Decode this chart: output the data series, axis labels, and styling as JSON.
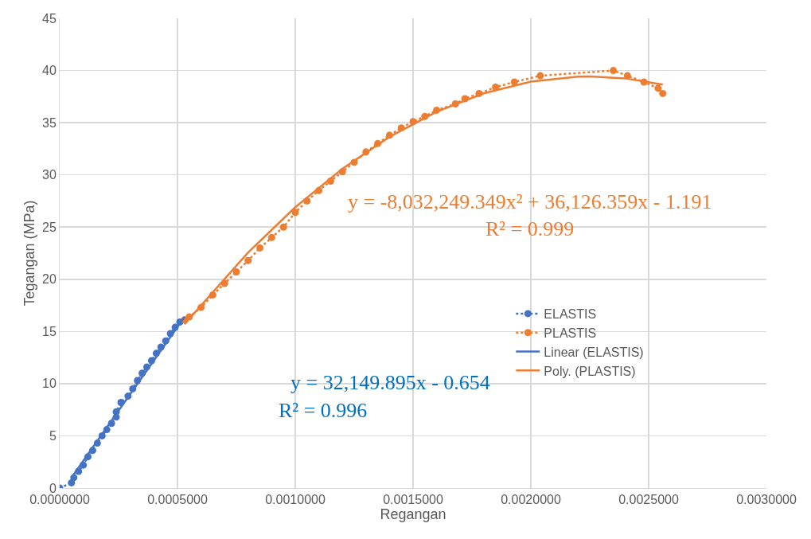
{
  "chart_data": {
    "type": "line",
    "xlabel": "Regangan",
    "ylabel": "Tegangan (MPa)",
    "xlim": [
      0,
      0.003
    ],
    "xticks": [
      {
        "value": 0,
        "label": "0.0000000"
      },
      {
        "value": 0.0005,
        "label": "0.0005000"
      },
      {
        "value": 0.001,
        "label": "0.0010000"
      },
      {
        "value": 0.0015,
        "label": "0.0015000"
      },
      {
        "value": 0.002,
        "label": "0.0020000"
      },
      {
        "value": 0.0025,
        "label": "0.0025000"
      },
      {
        "value": 0.003,
        "label": "0.0030000"
      }
    ],
    "ylim": [
      0,
      45
    ],
    "yticks": [
      0,
      5,
      10,
      15,
      20,
      25,
      30,
      35,
      40,
      45
    ],
    "grid": true,
    "legend": "right",
    "series": [
      {
        "name": "ELASTIS",
        "color": "#4472c4",
        "marker": "circle",
        "line_style": "dotted",
        "x": [
          0,
          5e-05,
          6e-05,
          8e-05,
          0.0001,
          0.00012,
          0.00014,
          0.00016,
          0.00018,
          0.0002,
          0.00022,
          0.00024,
          0.00024,
          0.00026,
          0.00029,
          0.00031,
          0.00033,
          0.00035,
          0.00037,
          0.00039,
          0.00041,
          0.00043,
          0.00045,
          0.00047,
          0.00049,
          0.00051,
          0.00053
        ],
        "values": [
          0,
          0.5,
          1.0,
          1.6,
          2.2,
          3.0,
          3.6,
          4.3,
          5.0,
          5.6,
          6.2,
          6.8,
          7.3,
          8.2,
          8.8,
          9.5,
          10.3,
          11.0,
          11.6,
          12.2,
          12.9,
          13.5,
          14.1,
          14.8,
          15.4,
          15.9,
          16.1
        ]
      },
      {
        "name": "PLASTIS",
        "color": "#ed7d31",
        "marker": "circle",
        "line_style": "dotted",
        "x": [
          0.00053,
          0.00055,
          0.0006,
          0.00065,
          0.0007,
          0.00075,
          0.0008,
          0.00085,
          0.0009,
          0.00095,
          0.001,
          0.00105,
          0.0011,
          0.00115,
          0.0012,
          0.00125,
          0.0013,
          0.00135,
          0.0014,
          0.00145,
          0.0015,
          0.00155,
          0.0016,
          0.00168,
          0.00172,
          0.00178,
          0.00185,
          0.00193,
          0.00204,
          0.00235,
          0.00241,
          0.00248,
          0.00254,
          0.00256
        ],
        "values": [
          16.1,
          16.4,
          17.3,
          18.5,
          19.6,
          20.7,
          21.8,
          23.0,
          24.0,
          25.0,
          26.4,
          27.5,
          28.5,
          29.4,
          30.3,
          31.2,
          32.2,
          33.0,
          33.8,
          34.5,
          35.1,
          35.6,
          36.2,
          36.8,
          37.3,
          37.8,
          38.4,
          38.9,
          39.5,
          40.0,
          39.5,
          38.9,
          38.3,
          37.8
        ]
      },
      {
        "name": "Linear (ELASTIS)",
        "color": "#4472c4",
        "marker": "none",
        "line_style": "solid",
        "x": [
          5e-05,
          0.00053
        ],
        "values": [
          1.0,
          16.4
        ]
      },
      {
        "name": "Poly. (PLASTIS)",
        "color": "#ed7d31",
        "marker": "none",
        "line_style": "solid",
        "x": [
          0.00053,
          0.0008,
          0.001,
          0.0012,
          0.0014,
          0.0016,
          0.0018,
          0.002,
          0.0022,
          0.00225,
          0.0024,
          0.00256
        ],
        "values": [
          15.7,
          22.57,
          26.9,
          30.59,
          33.64,
          36.05,
          37.81,
          38.93,
          39.41,
          39.43,
          39.25,
          38.65
        ]
      }
    ],
    "annotations": [
      "y = -8,032,249.349x² + 36,126.359x - 1.191",
      "R² = 0.999",
      "y = 32,149.895x - 0.654",
      "R² = 0.996"
    ]
  }
}
